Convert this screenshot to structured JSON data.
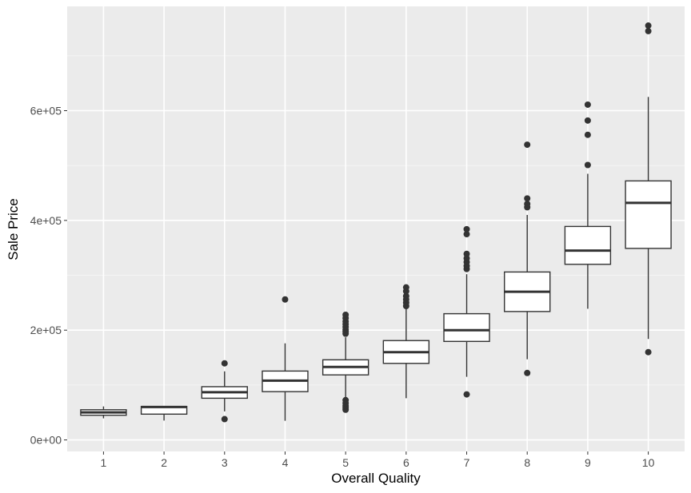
{
  "chart_data": {
    "type": "boxplot",
    "xlabel": "Overall Quality",
    "ylabel": "Sale Price",
    "ylim": [
      0,
      790000
    ],
    "yticks": [
      0,
      200000,
      400000,
      600000
    ],
    "ytick_labels": [
      "0e+00",
      "2e+05",
      "4e+05",
      "6e+05"
    ],
    "grid": true,
    "colors": {
      "panel_background": "#ebebeb",
      "grid_major": "#ffffff",
      "box_fill": "#ffffff",
      "box_stroke": "#333333",
      "outlier": "#333333"
    },
    "categories": [
      "1",
      "2",
      "3",
      "4",
      "5",
      "6",
      "7",
      "8",
      "9",
      "10"
    ],
    "boxes": [
      {
        "category": "1",
        "whisker_low": 39300,
        "q1": 45000,
        "median": 50150,
        "q3": 55000,
        "whisker_high": 61000,
        "outliers": []
      },
      {
        "category": "2",
        "whisker_low": 35300,
        "q1": 47000,
        "median": 60000,
        "q3": 61000,
        "whisker_high": 61500,
        "outliers": []
      },
      {
        "category": "3",
        "whisker_low": 52000,
        "q1": 76000,
        "median": 87000,
        "q3": 97000,
        "whisker_high": 125000,
        "outliers": [
          37900,
          139600
        ]
      },
      {
        "category": "4",
        "whisker_low": 34900,
        "q1": 88000,
        "median": 108000,
        "q3": 125500,
        "whisker_high": 176000,
        "outliers": [
          256000
        ]
      },
      {
        "category": "5",
        "whisker_low": 76000,
        "q1": 118500,
        "median": 133000,
        "q3": 146000,
        "whisker_high": 187000,
        "outliers": [
          55000,
          58500,
          62000,
          67000,
          72500,
          193500,
          197000,
          200500,
          206000,
          211000,
          216000,
          222000,
          228000
        ]
      },
      {
        "category": "6",
        "whisker_low": 76000,
        "q1": 139500,
        "median": 160000,
        "q3": 181000,
        "whisker_high": 240000,
        "outliers": [
          244000,
          250000,
          256000,
          262000,
          271000,
          278000
        ]
      },
      {
        "category": "7",
        "whisker_low": 115000,
        "q1": 179500,
        "median": 200000,
        "q3": 230000,
        "whisker_high": 302000,
        "outliers": [
          83000,
          311500,
          317000,
          324000,
          331000,
          339000,
          375000,
          384000
        ]
      },
      {
        "category": "8",
        "whisker_low": 147000,
        "q1": 234000,
        "median": 270000,
        "q3": 306000,
        "whisker_high": 410000,
        "outliers": [
          122000,
          424000,
          430000,
          440000,
          538000
        ]
      },
      {
        "category": "9",
        "whisker_low": 239000,
        "q1": 320000,
        "median": 345000,
        "q3": 389000,
        "whisker_high": 485000,
        "outliers": [
          501000,
          556000,
          582000,
          611000
        ]
      },
      {
        "category": "10",
        "whisker_low": 184000,
        "q1": 349000,
        "median": 432000,
        "q3": 472000,
        "whisker_high": 625000,
        "outliers": [
          160000,
          745000,
          755000
        ]
      }
    ]
  }
}
